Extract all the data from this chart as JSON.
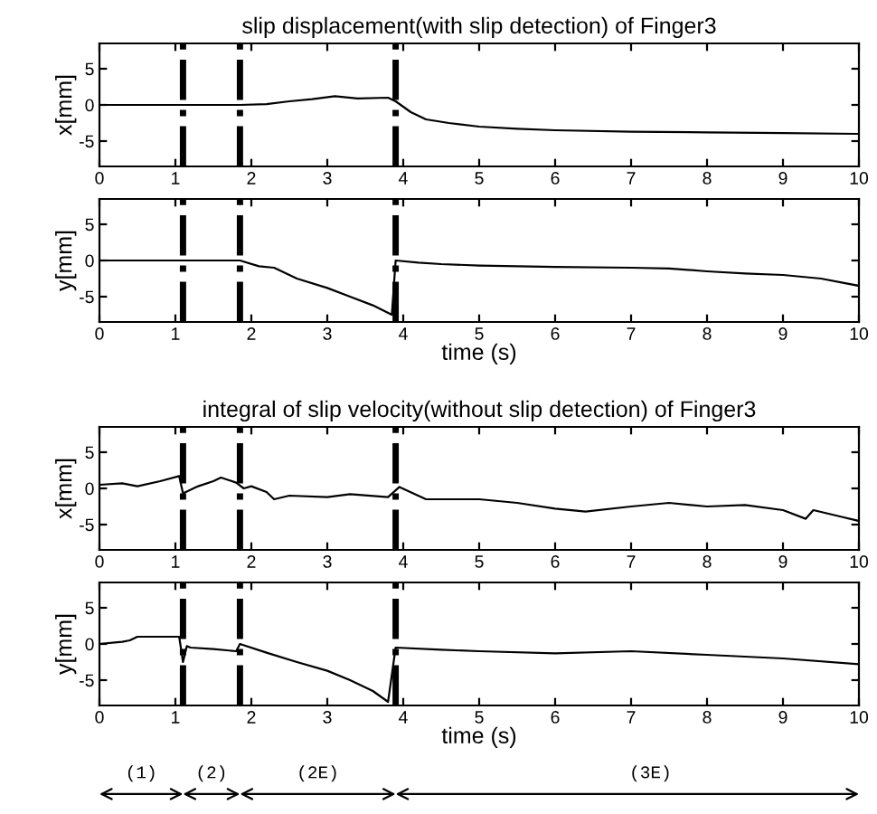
{
  "chart_data": [
    {
      "type": "line",
      "title": "slip displacement(with slip detection) of Finger3",
      "ylabel": "x[mm]",
      "xlim": [
        0,
        10
      ],
      "xticks": [
        0,
        1,
        2,
        3,
        4,
        5,
        6,
        7,
        8,
        9,
        10
      ],
      "ylim": [
        -8.5,
        8.5
      ],
      "yticks": [
        -5,
        0,
        5
      ],
      "grid": false,
      "marker": "none",
      "line_style": "solid",
      "ref_lines": [
        {
          "axis": "x",
          "value": 1.1,
          "color": "#000000",
          "line_style": "dashdot"
        },
        {
          "axis": "x",
          "value": 1.85,
          "color": "#000000",
          "line_style": "dashdot"
        },
        {
          "axis": "x",
          "value": 3.9,
          "color": "#000000",
          "line_style": "dashdot"
        }
      ],
      "series": [
        {
          "color": "#000000",
          "x": [
            0,
            0.5,
            1,
            1.5,
            1.85,
            2.2,
            2.5,
            2.8,
            3.1,
            3.4,
            3.8,
            3.9,
            4.1,
            4.3,
            4.6,
            5,
            5.5,
            6,
            7,
            8,
            9,
            10
          ],
          "values": [
            0,
            0,
            0,
            0,
            0,
            0.1,
            0.5,
            0.8,
            1.2,
            0.9,
            1,
            0.5,
            -1,
            -2,
            -2.5,
            -3,
            -3.3,
            -3.5,
            -3.7,
            -3.8,
            -3.9,
            -4
          ]
        }
      ]
    },
    {
      "type": "line",
      "xlabel": "time (s)",
      "ylabel": "y[mm]",
      "xlim": [
        0,
        10
      ],
      "xticks": [
        0,
        1,
        2,
        3,
        4,
        5,
        6,
        7,
        8,
        9,
        10
      ],
      "ylim": [
        -8.5,
        8.5
      ],
      "yticks": [
        -5,
        0,
        5
      ],
      "grid": false,
      "marker": "none",
      "line_style": "solid",
      "ref_lines": [
        {
          "axis": "x",
          "value": 1.1,
          "color": "#000000",
          "line_style": "dashdot"
        },
        {
          "axis": "x",
          "value": 1.85,
          "color": "#000000",
          "line_style": "dashdot"
        },
        {
          "axis": "x",
          "value": 3.9,
          "color": "#000000",
          "line_style": "dashdot"
        }
      ],
      "series": [
        {
          "color": "#000000",
          "x": [
            0,
            1,
            1.85,
            2.1,
            2.3,
            2.6,
            3,
            3.3,
            3.6,
            3.85,
            3.9,
            4.2,
            4.5,
            5,
            6,
            7,
            7.5,
            8,
            8.5,
            9,
            9.5,
            10
          ],
          "values": [
            0,
            0,
            0,
            -0.8,
            -1,
            -2.5,
            -3.8,
            -5,
            -6.2,
            -7.5,
            0,
            -0.3,
            -0.5,
            -0.7,
            -0.9,
            -1,
            -1.1,
            -1.5,
            -1.8,
            -2,
            -2.5,
            -3.5
          ]
        }
      ]
    },
    {
      "type": "line",
      "title": "integral of slip velocity(without slip detection) of Finger3",
      "ylabel": "x[mm]",
      "xlim": [
        0,
        10
      ],
      "xticks": [
        0,
        1,
        2,
        3,
        4,
        5,
        6,
        7,
        8,
        9,
        10
      ],
      "ylim": [
        -8.5,
        8.5
      ],
      "yticks": [
        -5,
        0,
        5
      ],
      "grid": false,
      "marker": "none",
      "line_style": "solid",
      "ref_lines": [
        {
          "axis": "x",
          "value": 1.1,
          "color": "#000000",
          "line_style": "dashdot"
        },
        {
          "axis": "x",
          "value": 1.85,
          "color": "#000000",
          "line_style": "dashdot"
        },
        {
          "axis": "x",
          "value": 3.9,
          "color": "#000000",
          "line_style": "dashdot"
        }
      ],
      "series": [
        {
          "color": "#000000",
          "x": [
            0,
            0.3,
            0.5,
            0.8,
            1.05,
            1.1,
            1.3,
            1.5,
            1.6,
            1.8,
            1.9,
            2,
            2.2,
            2.3,
            2.5,
            3,
            3.3,
            3.8,
            3.95,
            4.3,
            5,
            5.5,
            6,
            6.4,
            7,
            7.5,
            8,
            8.5,
            9,
            9.3,
            9.4,
            9.8,
            10
          ],
          "values": [
            0.5,
            0.7,
            0.3,
            1,
            1.7,
            -0.7,
            0.3,
            1,
            1.5,
            0.8,
            0,
            0.3,
            -0.5,
            -1.5,
            -1,
            -1.2,
            -0.8,
            -1.2,
            0.2,
            -1.5,
            -1.5,
            -2,
            -2.8,
            -3.2,
            -2.5,
            -2,
            -2.5,
            -2.3,
            -3,
            -4.2,
            -3,
            -4,
            -4.5
          ]
        }
      ]
    },
    {
      "type": "line",
      "xlabel": "time (s)",
      "ylabel": "y[mm]",
      "xlim": [
        0,
        10
      ],
      "xticks": [
        0,
        1,
        2,
        3,
        4,
        5,
        6,
        7,
        8,
        9,
        10
      ],
      "ylim": [
        -8.5,
        8.5
      ],
      "yticks": [
        -5,
        0,
        5
      ],
      "grid": false,
      "marker": "none",
      "line_style": "solid",
      "annotations": [
        "(1)",
        "(2)",
        "(2E)",
        "(3E)"
      ],
      "ref_lines": [
        {
          "axis": "x",
          "value": 1.1,
          "color": "#000000",
          "line_style": "dashdot"
        },
        {
          "axis": "x",
          "value": 1.85,
          "color": "#000000",
          "line_style": "dashdot"
        },
        {
          "axis": "x",
          "value": 3.9,
          "color": "#000000",
          "line_style": "dashdot"
        }
      ],
      "series": [
        {
          "color": "#000000",
          "x": [
            0,
            0.2,
            0.3,
            0.4,
            0.5,
            0.8,
            1.05,
            1.1,
            1.15,
            1.2,
            1.5,
            1.8,
            1.85,
            2.2,
            2.6,
            3,
            3.3,
            3.6,
            3.8,
            3.9,
            4.5,
            5,
            6,
            7,
            8,
            9,
            10
          ],
          "values": [
            0,
            0.2,
            0.3,
            0.5,
            1,
            1,
            1,
            -2.5,
            -0.3,
            -0.5,
            -0.7,
            -1,
            0,
            -1.2,
            -2.5,
            -3.7,
            -5,
            -6.5,
            -8,
            -0.5,
            -0.8,
            -1,
            -1.3,
            -1,
            -1.5,
            -2,
            -2.8
          ]
        }
      ]
    }
  ]
}
